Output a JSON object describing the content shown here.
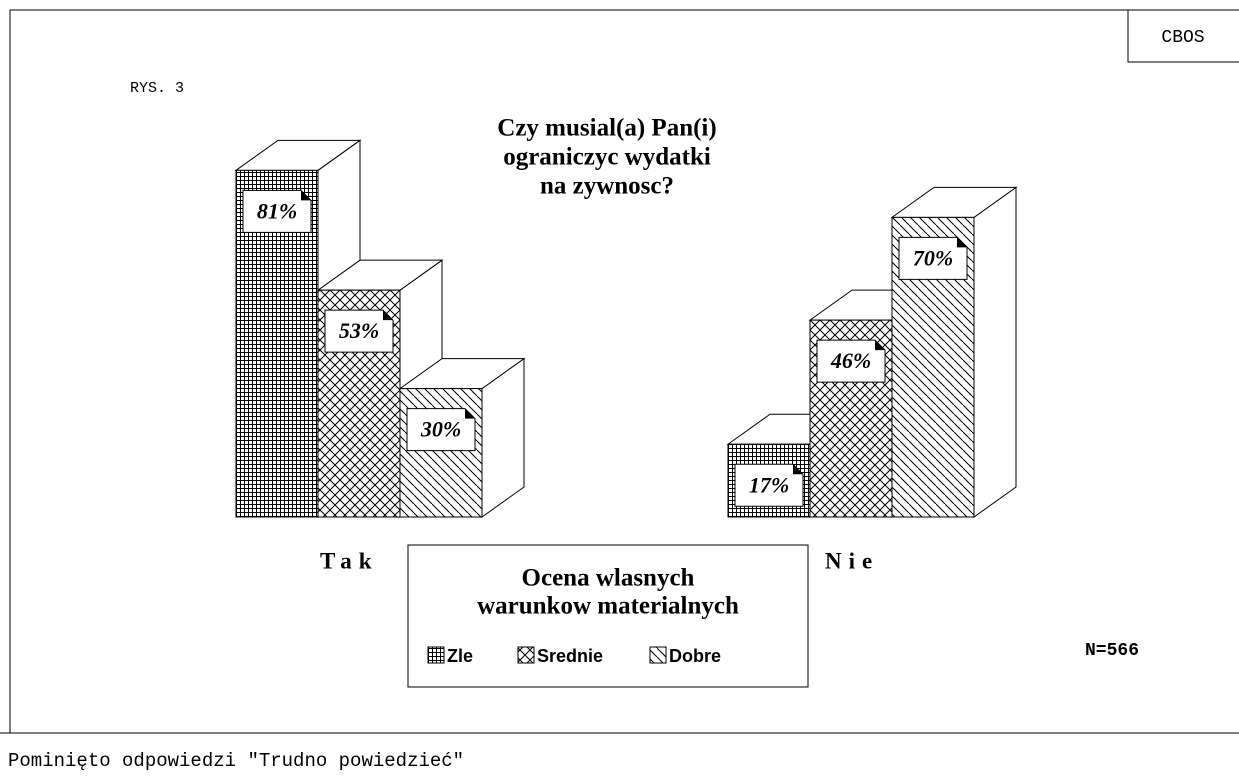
{
  "chart_data": {
    "type": "bar3d",
    "corner_label": "CBOS",
    "figure_label": "RYS. 3",
    "title": [
      "Czy musial(a) Pan(i)",
      "ograniczyc wydatki",
      "na zywnosc?"
    ],
    "categories": [
      "Tak",
      "Nie"
    ],
    "series": [
      {
        "name": "Zle",
        "pattern": "grid",
        "color": "#000000",
        "values": [
          81,
          17
        ],
        "value_labels": [
          "81%",
          "17%"
        ]
      },
      {
        "name": "Srednie",
        "pattern": "cross",
        "color": "#000000",
        "values": [
          53,
          46
        ],
        "value_labels": [
          "53%",
          "46%"
        ]
      },
      {
        "name": "Dobre",
        "pattern": "diagonal",
        "color": "#000000",
        "values": [
          30,
          70
        ],
        "value_labels": [
          "30%",
          "70%"
        ]
      }
    ],
    "legend_title": [
      "Ocena wlasnych",
      "warunkow materialnych"
    ],
    "sample_size": "N=566",
    "footnote": "Pominięto odpowiedzi \"Trudno powiedzieć\""
  }
}
